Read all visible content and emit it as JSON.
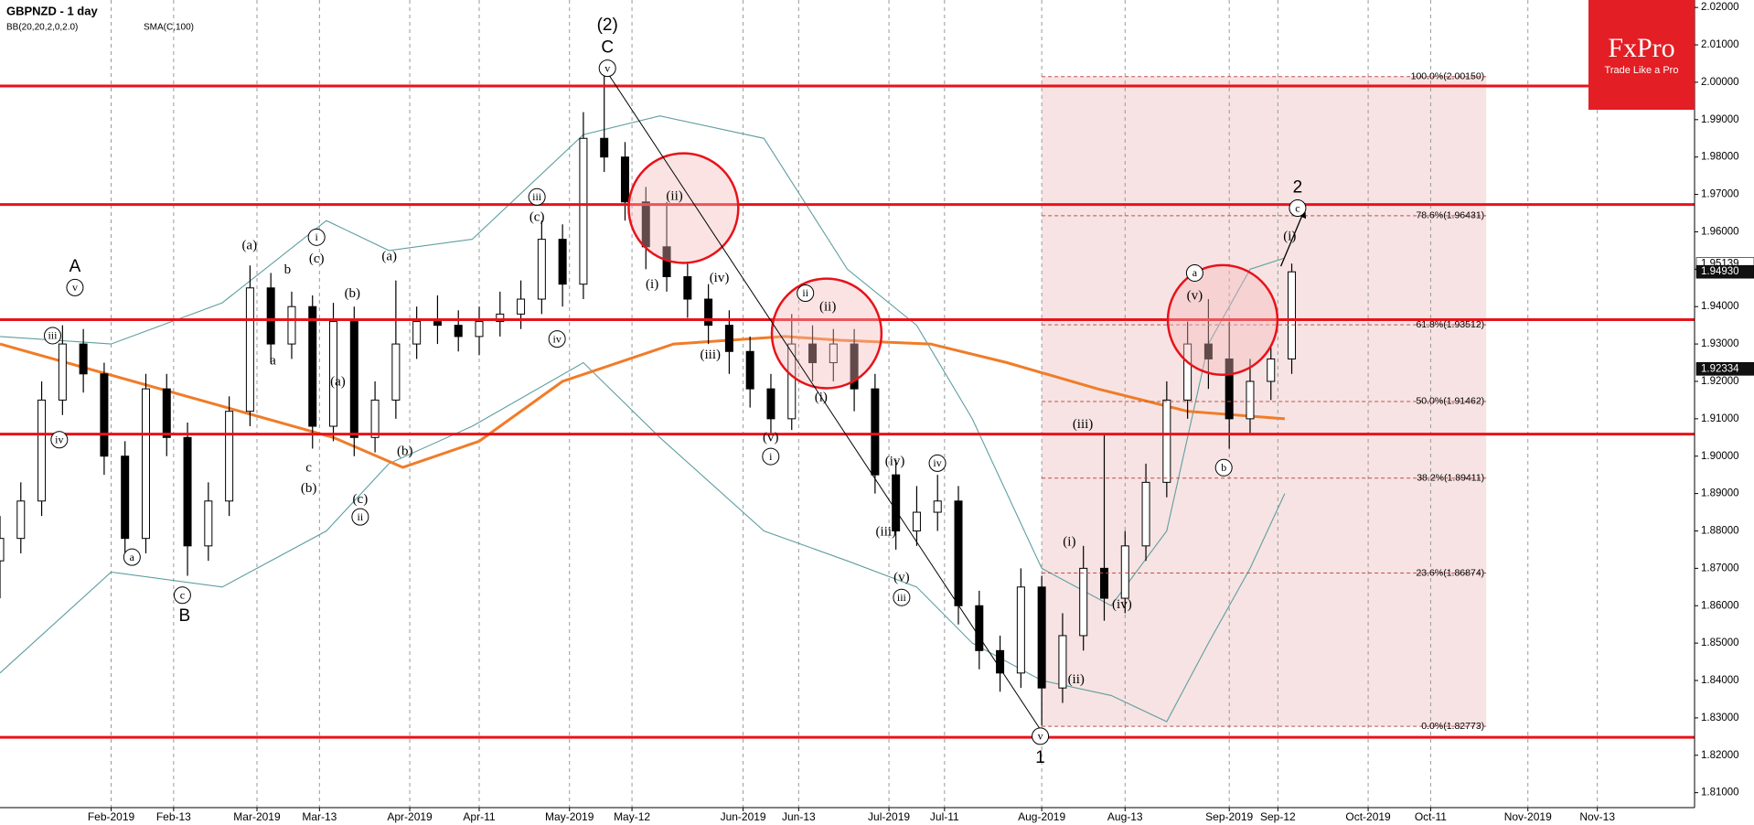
{
  "chart_data": {
    "type": "candlestick",
    "title": "GBPNZD - 1 day",
    "brand": "FxPro",
    "slogan": "Trade Like a Pro",
    "xlim": [
      0,
      244
    ],
    "ylim": [
      1.806,
      2.022
    ],
    "xticks": [
      {
        "value": 16,
        "label": "Feb-2019"
      },
      {
        "value": 25,
        "label": "Feb-13"
      },
      {
        "value": 37,
        "label": "Mar-2019"
      },
      {
        "value": 46,
        "label": "Mar-13"
      },
      {
        "value": 59,
        "label": "Apr-2019"
      },
      {
        "value": 69,
        "label": "Apr-11"
      },
      {
        "value": 82,
        "label": "May-2019"
      },
      {
        "value": 91,
        "label": "May-12"
      },
      {
        "value": 107,
        "label": "Jun-2019"
      },
      {
        "value": 115,
        "label": "Jun-13"
      },
      {
        "value": 128,
        "label": "Jul-2019"
      },
      {
        "value": 136,
        "label": "Jul-11"
      },
      {
        "value": 150,
        "label": "Aug-2019"
      },
      {
        "value": 162,
        "label": "Aug-13"
      },
      {
        "value": 177,
        "label": "Sep-2019"
      },
      {
        "value": 184,
        "label": "Sep-12"
      },
      {
        "value": 197,
        "label": "Oct-2019"
      },
      {
        "value": 206,
        "label": "Oct-11"
      },
      {
        "value": 220,
        "label": "Nov-2019"
      },
      {
        "value": 230,
        "label": "Nov-13"
      }
    ],
    "yticks": [
      {
        "value": 1.81,
        "label": "1.81000"
      },
      {
        "value": 1.82,
        "label": "1.82000"
      },
      {
        "value": 1.83,
        "label": "1.83000"
      },
      {
        "value": 1.84,
        "label": "1.84000"
      },
      {
        "value": 1.85,
        "label": "1.85000"
      },
      {
        "value": 1.86,
        "label": "1.86000"
      },
      {
        "value": 1.87,
        "label": "1.87000"
      },
      {
        "value": 1.88,
        "label": "1.88000"
      },
      {
        "value": 1.89,
        "label": "1.89000"
      },
      {
        "value": 1.9,
        "label": "1.90000"
      },
      {
        "value": 1.91,
        "label": "1.91000"
      },
      {
        "value": 1.92,
        "label": "1.92000"
      },
      {
        "value": 1.93,
        "label": "1.93000"
      },
      {
        "value": 1.94,
        "label": "1.94000"
      },
      {
        "value": 1.95,
        "label": "1.95000"
      },
      {
        "value": 1.96,
        "label": "1.96000"
      },
      {
        "value": 1.97,
        "label": "1.97000"
      },
      {
        "value": 1.98,
        "label": "1.98000"
      },
      {
        "value": 1.99,
        "label": "1.99000"
      },
      {
        "value": 2.0,
        "label": "2.00000"
      },
      {
        "value": 2.01,
        "label": "2.01000"
      },
      {
        "value": 2.02,
        "label": "2.02000"
      }
    ],
    "price_markers": [
      {
        "value": 1.95139,
        "label": "1.95139"
      },
      {
        "value": 1.9493,
        "label": "1.94930"
      },
      {
        "value": 1.92334,
        "label": "1.92334"
      }
    ],
    "candles": {
      "x": [
        0,
        3,
        6,
        9,
        12,
        15,
        18,
        21,
        24,
        27,
        30,
        33,
        36,
        39,
        42,
        45,
        48,
        51,
        54,
        57,
        60,
        63,
        66,
        69,
        72,
        75,
        78,
        81,
        84,
        87,
        90,
        93,
        96,
        99,
        102,
        105,
        108,
        111,
        114,
        117,
        120,
        123,
        126,
        129,
        132,
        135,
        138,
        141,
        144,
        147,
        150,
        153,
        156,
        159,
        162,
        165,
        168,
        171,
        174,
        177,
        180,
        183,
        186
      ],
      "open": [
        1.872,
        1.878,
        1.888,
        1.915,
        1.93,
        1.922,
        1.9,
        1.878,
        1.918,
        1.905,
        1.876,
        1.888,
        1.912,
        1.945,
        1.93,
        1.94,
        1.908,
        1.936,
        1.905,
        1.915,
        1.93,
        1.936,
        1.935,
        1.932,
        1.936,
        1.938,
        1.942,
        1.958,
        1.946,
        1.985,
        1.98,
        1.968,
        1.956,
        1.948,
        1.942,
        1.935,
        1.928,
        1.918,
        1.91,
        1.93,
        1.925,
        1.93,
        1.918,
        1.895,
        1.88,
        1.885,
        1.888,
        1.86,
        1.848,
        1.842,
        1.865,
        1.838,
        1.852,
        1.87,
        1.862,
        1.876,
        1.893,
        1.915,
        1.93,
        1.926,
        1.91,
        1.92,
        1.926
      ],
      "high": [
        1.884,
        1.893,
        1.92,
        1.935,
        1.934,
        1.925,
        1.904,
        1.922,
        1.922,
        1.909,
        1.893,
        1.916,
        1.951,
        1.949,
        1.944,
        1.943,
        1.941,
        1.94,
        1.92,
        1.947,
        1.94,
        1.943,
        1.939,
        1.94,
        1.944,
        1.947,
        1.963,
        1.962,
        1.992,
        2.002,
        1.984,
        1.972,
        1.968,
        1.952,
        1.946,
        1.939,
        1.932,
        1.922,
        1.938,
        1.935,
        1.934,
        1.934,
        1.922,
        1.899,
        1.892,
        1.895,
        1.892,
        1.864,
        1.852,
        1.87,
        1.868,
        1.858,
        1.876,
        1.906,
        1.88,
        1.898,
        1.92,
        1.936,
        1.942,
        1.936,
        1.926,
        1.93,
        1.9515
      ],
      "low": [
        1.862,
        1.874,
        1.884,
        1.911,
        1.917,
        1.895,
        1.872,
        1.874,
        1.9,
        1.868,
        1.872,
        1.884,
        1.908,
        1.925,
        1.926,
        1.902,
        1.904,
        1.9,
        1.901,
        1.91,
        1.926,
        1.93,
        1.928,
        1.927,
        1.932,
        1.934,
        1.938,
        1.94,
        1.942,
        1.976,
        1.963,
        1.95,
        1.944,
        1.937,
        1.93,
        1.922,
        1.913,
        1.906,
        1.907,
        1.92,
        1.92,
        1.912,
        1.89,
        1.875,
        1.876,
        1.88,
        1.855,
        1.843,
        1.837,
        1.838,
        1.828,
        1.834,
        1.848,
        1.856,
        1.858,
        1.872,
        1.889,
        1.91,
        1.918,
        1.902,
        1.906,
        1.915,
        1.922
      ],
      "close": [
        1.878,
        1.888,
        1.915,
        1.93,
        1.922,
        1.9,
        1.878,
        1.918,
        1.905,
        1.876,
        1.888,
        1.912,
        1.945,
        1.93,
        1.94,
        1.908,
        1.936,
        1.905,
        1.915,
        1.93,
        1.936,
        1.935,
        1.932,
        1.936,
        1.938,
        1.942,
        1.958,
        1.946,
        1.985,
        1.98,
        1.968,
        1.956,
        1.948,
        1.942,
        1.935,
        1.928,
        1.918,
        1.91,
        1.93,
        1.925,
        1.93,
        1.918,
        1.895,
        1.88,
        1.885,
        1.888,
        1.86,
        1.848,
        1.842,
        1.865,
        1.838,
        1.852,
        1.87,
        1.862,
        1.876,
        1.893,
        1.915,
        1.93,
        1.926,
        1.91,
        1.92,
        1.926,
        1.9493
      ]
    },
    "bollinger": {
      "name": "BB(20,20,2,0,2.0)",
      "color": "#5f9ea0",
      "x": [
        0,
        16,
        32,
        47,
        56,
        68,
        84,
        95,
        110,
        122,
        132,
        140,
        150,
        160,
        168,
        174,
        180,
        185
      ],
      "upper": [
        1.932,
        1.93,
        1.941,
        1.963,
        1.955,
        1.958,
        1.986,
        1.991,
        1.985,
        1.95,
        1.935,
        1.91,
        1.87,
        1.86,
        1.88,
        1.93,
        1.95,
        1.953
      ],
      "lower": [
        1.842,
        1.869,
        1.865,
        1.88,
        1.898,
        1.908,
        1.925,
        1.905,
        1.88,
        1.872,
        1.865,
        1.85,
        1.84,
        1.836,
        1.829,
        1.85,
        1.87,
        1.89
      ]
    },
    "sma": {
      "name": "SMA(C,100)",
      "color": "#f07c28",
      "x": [
        0,
        48,
        58,
        69,
        81,
        97,
        113,
        121,
        134,
        145,
        158,
        171,
        185
      ],
      "values": [
        1.93,
        1.905,
        1.897,
        1.904,
        1.92,
        1.93,
        1.932,
        1.931,
        1.93,
        1.925,
        1.918,
        1.912,
        1.91
      ]
    },
    "key_levels": {
      "color": "#e8121a",
      "values": [
        1.999,
        1.9673,
        1.9365,
        1.9059,
        1.8248
      ]
    },
    "fibonacci": {
      "x": [
        150,
        214
      ],
      "levels": [
        {
          "value": 2.0015,
          "label": "100.0%(2.00150)"
        },
        {
          "value": 1.96431,
          "label": "78.6%(1.96431)"
        },
        {
          "value": 1.93512,
          "label": "61.8%(1.93512)"
        },
        {
          "value": 1.91462,
          "label": "50.0%(1.91462)"
        },
        {
          "value": 1.89411,
          "label": "38.2%(1.89411)"
        },
        {
          "value": 1.86874,
          "label": "23.6%(1.86874)"
        },
        {
          "value": 1.82773,
          "label": "0.0%(1.82773)"
        }
      ]
    },
    "annotations": [
      "(2)",
      "C",
      "v",
      "A",
      "v",
      "iii",
      "iv",
      "a",
      "c",
      "B",
      "(a)",
      "b",
      "a",
      "i",
      "(c)",
      "c",
      "(b)",
      "(b)",
      "(a)",
      "(c)",
      "ii",
      "(a)",
      "(b)",
      "iii",
      "(c)",
      "iv",
      "(ii)",
      "(i)",
      "(iv)",
      "(iii)",
      "ii",
      "(ii)",
      "(i)",
      "(v)",
      "i",
      "(iv)",
      "iv",
      "(iii)",
      "(v)",
      "iii",
      "v",
      "1",
      "(iii)",
      "(i)",
      "(ii)",
      "(iv)",
      "a",
      "(v)",
      "b",
      "(i)",
      "c",
      "2"
    ]
  }
}
